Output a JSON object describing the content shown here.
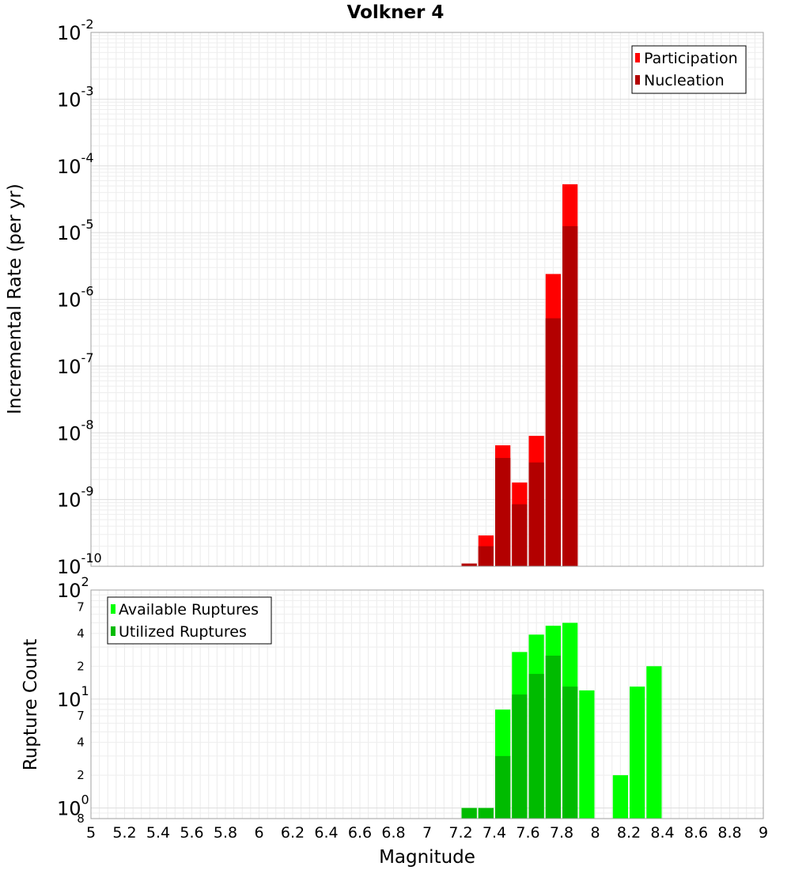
{
  "chart_data": [
    {
      "type": "bar",
      "title": "Volkner 4",
      "xlabel": "",
      "ylabel": "Incremental Rate (per yr)",
      "yscale": "log",
      "xlim": [
        5,
        9
      ],
      "ylim": [
        1e-10,
        0.01
      ],
      "bar_width": 0.1,
      "grid": true,
      "legend_position": "top-right",
      "y_ticks": [
        {
          "base": "10",
          "exp": "-2"
        },
        {
          "base": "10",
          "exp": "-3"
        },
        {
          "base": "10",
          "exp": "-4"
        },
        {
          "base": "10",
          "exp": "-5"
        },
        {
          "base": "10",
          "exp": "-6"
        },
        {
          "base": "10",
          "exp": "-7"
        },
        {
          "base": "10",
          "exp": "-8"
        },
        {
          "base": "10",
          "exp": "-9"
        },
        {
          "base": "10",
          "exp": "-10"
        }
      ],
      "series": [
        {
          "name": "Participation",
          "color": "#ff0000",
          "x": [
            7.25,
            7.35,
            7.45,
            7.55,
            7.65,
            7.75,
            7.85
          ],
          "values": [
            1.1e-10,
            2.9e-10,
            6.5e-09,
            1.8e-09,
            9e-09,
            2.4e-06,
            5.3e-05
          ]
        },
        {
          "name": "Nucleation",
          "color": "#b30000",
          "x": [
            7.25,
            7.35,
            7.45,
            7.55,
            7.65,
            7.75,
            7.85
          ],
          "values": [
            1.1e-10,
            2e-10,
            4.2e-09,
            8.5e-10,
            3.6e-09,
            5.2e-07,
            1.25e-05
          ]
        }
      ]
    },
    {
      "type": "bar",
      "title": "",
      "xlabel": "Magnitude",
      "ylabel": "Rupture Count",
      "yscale": "log",
      "xlim": [
        5,
        9
      ],
      "ylim": [
        0.8,
        100
      ],
      "bar_width": 0.1,
      "grid": true,
      "legend_position": "top-left",
      "x_ticks": [
        "5",
        "5.2",
        "5.4",
        "5.6",
        "5.8",
        "6",
        "6.2",
        "6.4",
        "6.6",
        "6.8",
        "7",
        "7.2",
        "7.4",
        "7.6",
        "7.8",
        "8",
        "8.2",
        "8.4",
        "8.6",
        "8.8",
        "9"
      ],
      "y_ticks": [
        {
          "base": "10",
          "exp": "2"
        },
        {
          "base": "10",
          "exp": "1"
        },
        {
          "base": "10",
          "exp": "0"
        }
      ],
      "y_minor_ticks": [
        "7",
        "4",
        "2",
        "7",
        "4",
        "2",
        "8"
      ],
      "series": [
        {
          "name": "Available Ruptures",
          "color": "#00ff00",
          "x": [
            7.25,
            7.35,
            7.45,
            7.55,
            7.65,
            7.75,
            7.85,
            7.95,
            8.15,
            8.25,
            8.35
          ],
          "values": [
            1,
            1,
            8,
            27,
            39,
            47,
            50,
            12,
            2,
            13,
            20
          ]
        },
        {
          "name": "Utilized Ruptures",
          "color": "#00bb00",
          "x": [
            7.25,
            7.35,
            7.45,
            7.55,
            7.65,
            7.75,
            7.85
          ],
          "values": [
            1,
            1,
            3,
            11,
            17,
            25,
            13
          ]
        }
      ]
    }
  ]
}
